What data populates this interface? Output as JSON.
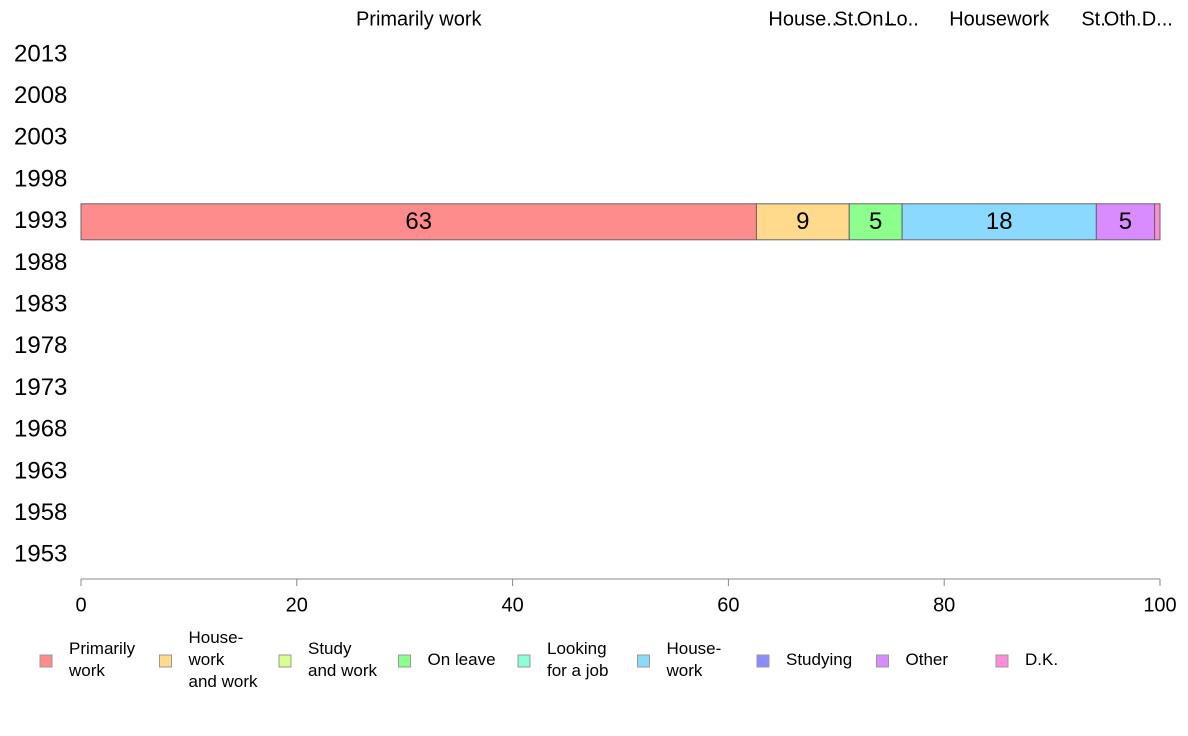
{
  "chart_data": {
    "type": "bar",
    "orientation": "horizontal",
    "stacked": true,
    "categories": [
      "2013",
      "2008",
      "2003",
      "1998",
      "1993",
      "1988",
      "1983",
      "1978",
      "1973",
      "1968",
      "1963",
      "1958",
      "1953"
    ],
    "series": [
      {
        "name": "Primarily work",
        "color": "#ff8c8c",
        "values": [
          null,
          null,
          null,
          null,
          62.6,
          null,
          null,
          null,
          null,
          null,
          null,
          null,
          null
        ],
        "value_labels": [
          "",
          "",
          "",
          "",
          "63",
          "",
          "",
          "",
          "",
          "",
          "",
          "",
          ""
        ]
      },
      {
        "name": "House-work and work",
        "color": "#ffd98c",
        "values": [
          null,
          null,
          null,
          null,
          8.6,
          null,
          null,
          null,
          null,
          null,
          null,
          null,
          null
        ],
        "value_labels": [
          "",
          "",
          "",
          "",
          "9",
          "",
          "",
          "",
          "",
          "",
          "",
          "",
          ""
        ]
      },
      {
        "name": "Study and work",
        "color": "#d9ff8c",
        "values": [
          null,
          null,
          null,
          null,
          0.0,
          null,
          null,
          null,
          null,
          null,
          null,
          null,
          null
        ],
        "value_labels": [
          "",
          "",
          "",
          "",
          "",
          "",
          "",
          "",
          "",
          "",
          "",
          "",
          ""
        ]
      },
      {
        "name": "On leave",
        "color": "#8cff8c",
        "values": [
          null,
          null,
          null,
          null,
          4.9,
          null,
          null,
          null,
          null,
          null,
          null,
          null,
          null
        ],
        "value_labels": [
          "",
          "",
          "",
          "",
          "5",
          "",
          "",
          "",
          "",
          "",
          "",
          "",
          ""
        ]
      },
      {
        "name": "Looking for a job",
        "color": "#8cffd9",
        "values": [
          null,
          null,
          null,
          null,
          0.0,
          null,
          null,
          null,
          null,
          null,
          null,
          null,
          null
        ],
        "value_labels": [
          "",
          "",
          "",
          "",
          "",
          "",
          "",
          "",
          "",
          "",
          "",
          "",
          ""
        ]
      },
      {
        "name": "House-work",
        "color": "#8cd9ff",
        "values": [
          null,
          null,
          null,
          null,
          18.0,
          null,
          null,
          null,
          null,
          null,
          null,
          null,
          null
        ],
        "value_labels": [
          "",
          "",
          "",
          "",
          "18",
          "",
          "",
          "",
          "",
          "",
          "",
          "",
          ""
        ]
      },
      {
        "name": "Studying",
        "color": "#8c8cff",
        "values": [
          null,
          null,
          null,
          null,
          0.0,
          null,
          null,
          null,
          null,
          null,
          null,
          null,
          null
        ],
        "value_labels": [
          "",
          "",
          "",
          "",
          "",
          "",
          "",
          "",
          "",
          "",
          "",
          "",
          ""
        ]
      },
      {
        "name": "Other",
        "color": "#d98cff",
        "values": [
          null,
          null,
          null,
          null,
          5.4,
          null,
          null,
          null,
          null,
          null,
          null,
          null,
          null
        ],
        "value_labels": [
          "",
          "",
          "",
          "",
          "5",
          "",
          "",
          "",
          "",
          "",
          "",
          "",
          ""
        ]
      },
      {
        "name": "D.K.",
        "color": "#ff8cd9",
        "values": [
          null,
          null,
          null,
          null,
          0.5,
          null,
          null,
          null,
          null,
          null,
          null,
          null,
          null
        ],
        "value_labels": [
          "",
          "",
          "",
          "",
          "",
          "",
          "",
          "",
          "",
          "",
          "",
          "",
          ""
        ]
      }
    ],
    "legend_labels": [
      [
        "Primarily",
        "work"
      ],
      [
        "House-",
        "work",
        "and work"
      ],
      [
        "Study",
        "and work"
      ],
      [
        "On leave"
      ],
      [
        "Looking",
        "for a job"
      ],
      [
        "House-",
        "work"
      ],
      [
        "Studying"
      ],
      [
        "Other"
      ],
      [
        "D.K."
      ]
    ],
    "top_labels": [
      "Primarily work",
      "House..",
      "St..",
      "On..",
      "Lo..",
      "Housework",
      "St..",
      "Oth..",
      "D..."
    ],
    "xlim": [
      0,
      100
    ],
    "xticks": [
      0,
      20,
      40,
      60,
      80,
      100
    ],
    "legend_position": "bottom",
    "grid": false
  }
}
